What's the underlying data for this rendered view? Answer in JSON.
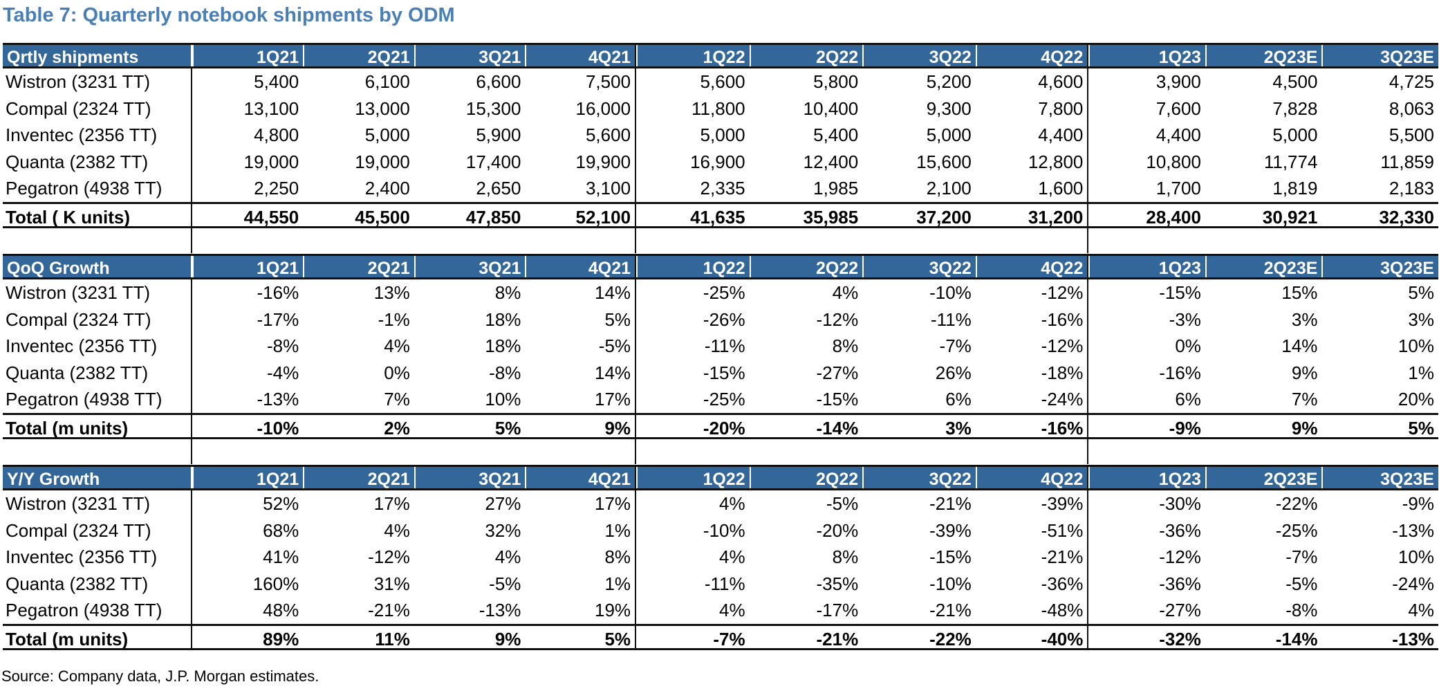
{
  "title": "Table 7: Quarterly notebook shipments by ODM",
  "source": "Source: Company data, J.P. Morgan estimates.",
  "quarters": [
    "1Q21",
    "2Q21",
    "3Q21",
    "4Q21",
    "1Q22",
    "2Q22",
    "3Q22",
    "4Q22",
    "1Q23",
    "2Q23E",
    "3Q23E"
  ],
  "sections": [
    {
      "header": "Qrtly shipments",
      "rows": [
        {
          "label": "Wistron (3231 TT)",
          "values": [
            "5,400",
            "6,100",
            "6,600",
            "7,500",
            "5,600",
            "5,800",
            "5,200",
            "4,600",
            "3,900",
            "4,500",
            "4,725"
          ]
        },
        {
          "label": "Compal (2324 TT)",
          "values": [
            "13,100",
            "13,000",
            "15,300",
            "16,000",
            "11,800",
            "10,400",
            "9,300",
            "7,800",
            "7,600",
            "7,828",
            "8,063"
          ]
        },
        {
          "label": "Inventec (2356 TT)",
          "values": [
            "4,800",
            "5,000",
            "5,900",
            "5,600",
            "5,000",
            "5,400",
            "5,000",
            "4,400",
            "4,400",
            "5,000",
            "5,500"
          ]
        },
        {
          "label": "Quanta (2382 TT)",
          "values": [
            "19,000",
            "19,000",
            "17,400",
            "19,900",
            "16,900",
            "12,400",
            "15,600",
            "12,800",
            "10,800",
            "11,774",
            "11,859"
          ]
        },
        {
          "label": "Pegatron (4938 TT)",
          "values": [
            "2,250",
            "2,400",
            "2,650",
            "3,100",
            "2,335",
            "1,985",
            "2,100",
            "1,600",
            "1,700",
            "1,819",
            "2,183"
          ]
        }
      ],
      "total": {
        "label": "Total ( K units)",
        "values": [
          "44,550",
          "45,500",
          "47,850",
          "52,100",
          "41,635",
          "35,985",
          "37,200",
          "31,200",
          "28,400",
          "30,921",
          "32,330"
        ]
      }
    },
    {
      "header": "QoQ Growth",
      "rows": [
        {
          "label": "Wistron (3231 TT)",
          "values": [
            "-16%",
            "13%",
            "8%",
            "14%",
            "-25%",
            "4%",
            "-10%",
            "-12%",
            "-15%",
            "15%",
            "5%"
          ]
        },
        {
          "label": "Compal (2324 TT)",
          "values": [
            "-17%",
            "-1%",
            "18%",
            "5%",
            "-26%",
            "-12%",
            "-11%",
            "-16%",
            "-3%",
            "3%",
            "3%"
          ]
        },
        {
          "label": "Inventec (2356 TT)",
          "values": [
            "-8%",
            "4%",
            "18%",
            "-5%",
            "-11%",
            "8%",
            "-7%",
            "-12%",
            "0%",
            "14%",
            "10%"
          ]
        },
        {
          "label": "Quanta (2382 TT)",
          "values": [
            "-4%",
            "0%",
            "-8%",
            "14%",
            "-15%",
            "-27%",
            "26%",
            "-18%",
            "-16%",
            "9%",
            "1%"
          ]
        },
        {
          "label": "Pegatron (4938 TT)",
          "values": [
            "-13%",
            "7%",
            "10%",
            "17%",
            "-25%",
            "-15%",
            "6%",
            "-24%",
            "6%",
            "7%",
            "20%"
          ]
        }
      ],
      "total": {
        "label": "Total (m units)",
        "values": [
          "-10%",
          "2%",
          "5%",
          "9%",
          "-20%",
          "-14%",
          "3%",
          "-16%",
          "-9%",
          "9%",
          "5%"
        ]
      }
    },
    {
      "header": "Y/Y Growth",
      "rows": [
        {
          "label": "Wistron (3231 TT)",
          "values": [
            "52%",
            "17%",
            "27%",
            "17%",
            "4%",
            "-5%",
            "-21%",
            "-39%",
            "-30%",
            "-22%",
            "-9%"
          ]
        },
        {
          "label": "Compal (2324 TT)",
          "values": [
            "68%",
            "4%",
            "32%",
            "1%",
            "-10%",
            "-20%",
            "-39%",
            "-51%",
            "-36%",
            "-25%",
            "-13%"
          ]
        },
        {
          "label": "Inventec (2356 TT)",
          "values": [
            "41%",
            "-12%",
            "4%",
            "8%",
            "4%",
            "8%",
            "-15%",
            "-21%",
            "-12%",
            "-7%",
            "10%"
          ]
        },
        {
          "label": "Quanta (2382 TT)",
          "values": [
            "160%",
            "31%",
            "-5%",
            "1%",
            "-11%",
            "-35%",
            "-10%",
            "-36%",
            "-36%",
            "-5%",
            "-24%"
          ]
        },
        {
          "label": "Pegatron (4938 TT)",
          "values": [
            "48%",
            "-21%",
            "-13%",
            "19%",
            "4%",
            "-17%",
            "-21%",
            "-48%",
            "-27%",
            "-8%",
            "4%"
          ]
        }
      ],
      "total": {
        "label": "Total (m units)",
        "values": [
          "89%",
          "11%",
          "9%",
          "5%",
          "-7%",
          "-21%",
          "-22%",
          "-40%",
          "-32%",
          "-14%",
          "-13%"
        ]
      }
    }
  ]
}
